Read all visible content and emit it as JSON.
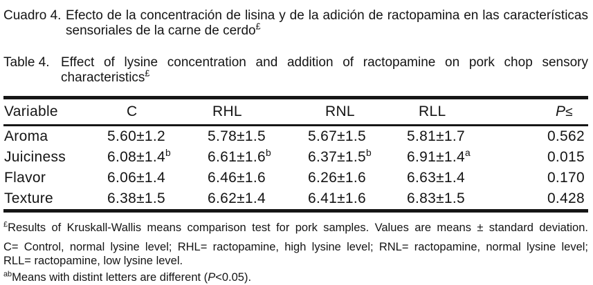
{
  "page": {
    "background": "#ffffff",
    "text_color": "#141414",
    "rule_color": "#161616",
    "language": "Spanish / English scientific table"
  },
  "captions": [
    {
      "label": "Cuadro 4.",
      "line1": "Efecto de la concentración de lisina y de la adición de ractopamina en las características",
      "line2_text": "sensoriales de la carne de cerdo",
      "line2_sup": "£"
    },
    {
      "label": "Table 4.",
      "line1": "Effect of lysine concentration and addition of ractopamine on pork chop sensory",
      "line2_text": "characteristics",
      "line2_sup": "£"
    }
  ],
  "table": {
    "headers": {
      "variable": "Variable",
      "c": "C",
      "rhl": "RHL",
      "rnl": "RNL",
      "rll": "RLL",
      "p_italic": "P",
      "p_symbol": "≤"
    },
    "rows": [
      {
        "variable": "Aroma",
        "c": "5.60±1.2",
        "c_sup": "",
        "rhl": "5.78±1.5",
        "rhl_sup": "",
        "rnl": "5.67±1.5",
        "rnl_sup": "",
        "rll": "5.81±1.7",
        "rll_sup": "",
        "p": "0.562"
      },
      {
        "variable": "Juiciness",
        "c": "6.08±1.4",
        "c_sup": "b",
        "rhl": "6.61±1.6",
        "rhl_sup": "b",
        "rnl": "6.37±1.5",
        "rnl_sup": "b",
        "rll": "6.91±1.4",
        "rll_sup": "a",
        "p": "0.015"
      },
      {
        "variable": "Flavor",
        "c": "6.06±1.4",
        "c_sup": "",
        "rhl": "6.46±1.6",
        "rhl_sup": "",
        "rnl": "6.26±1.6",
        "rnl_sup": "",
        "rll": "6.63±1.4",
        "rll_sup": "",
        "p": "0.170"
      },
      {
        "variable": "Texture",
        "c": "6.38±1.5",
        "c_sup": "",
        "rhl": "6.62±1.4",
        "rhl_sup": "",
        "rnl": "6.41±1.6",
        "rnl_sup": "",
        "rll": "6.83±1.5",
        "rll_sup": "",
        "p": "0.428"
      }
    ]
  },
  "footnotes": {
    "fn1_sup": "£",
    "fn1_text": "Results of Kruskall-Wallis means comparison test for pork samples. Values are means ± standard deviation.",
    "fn2_line1": "C= Control, normal lysine level; RHL= ractopamine, high lysine level; RNL= ractopamine, normal lysine level;",
    "fn2_line2": "RLL= ractopamine, low lysine level.",
    "fn3_sup": "ab",
    "fn3_pre": "Means with distint letters are different (",
    "fn3_italic": "P",
    "fn3_post": "<0.05)."
  },
  "chart_data": {
    "type": "table",
    "title": "Table 4. Effect of lysine concentration and addition of ractopamine on pork chop sensory characteristics",
    "columns": [
      "Variable",
      "C",
      "RHL",
      "RNL",
      "RLL",
      "P≤"
    ],
    "rows": [
      [
        "Aroma",
        "5.60±1.2",
        "5.78±1.5",
        "5.67±1.5",
        "5.81±1.7",
        "0.562"
      ],
      [
        "Juiciness",
        "6.08±1.4 b",
        "6.61±1.6 b",
        "6.37±1.5 b",
        "6.91±1.4 a",
        "0.015"
      ],
      [
        "Flavor",
        "6.06±1.4",
        "6.46±1.6",
        "6.26±1.6",
        "6.63±1.4",
        "0.170"
      ],
      [
        "Texture",
        "6.38±1.5",
        "6.62±1.4",
        "6.41±1.6",
        "6.83±1.5",
        "0.428"
      ]
    ]
  }
}
